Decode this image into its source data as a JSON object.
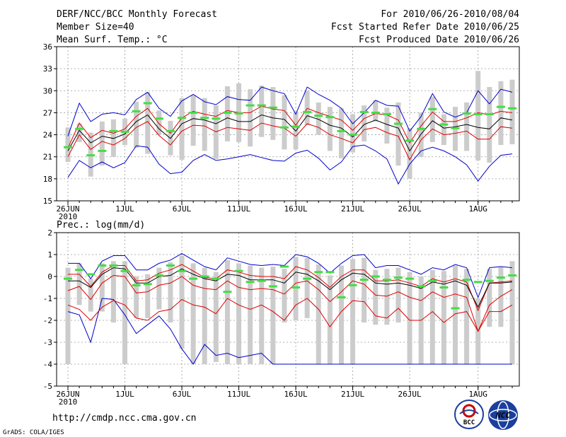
{
  "header": {
    "title": "DERF/NCC/BCC Monthly Forecast",
    "member": "Member Size=40",
    "variable": "Mean Surf. Temp.: °C",
    "period": "For 2010/06/26-2010/08/04",
    "started": "Fcst Started Refer Date 2010/06/25",
    "produced": "Fcst Produced Date 2010/06/26"
  },
  "footer": {
    "url": "http://cmdp.ncc.cma.gov.cn",
    "credit": "GrADS: COLA/IGES",
    "logo_left_text": "BCC",
    "logo_right_text": "NCC"
  },
  "colors": {
    "envelope": "#0000cc",
    "spread": "#dd0000",
    "mean": "#000000",
    "observed": "#44dd44",
    "box": "#cccccc",
    "grid": "#999999"
  },
  "chart_data": [
    {
      "type": "line",
      "title": "Mean Surf. Temp.: °C",
      "ylim": [
        15,
        36
      ],
      "yticks": [
        15,
        18,
        21,
        24,
        27,
        30,
        33,
        36
      ],
      "xticks": [
        {
          "day": 0,
          "label": "26JUN",
          "sub": "2010"
        },
        {
          "day": 5,
          "label": "1JUL",
          "sub": ""
        },
        {
          "day": 10,
          "label": "6JUL",
          "sub": ""
        },
        {
          "day": 15,
          "label": "11JUL",
          "sub": ""
        },
        {
          "day": 20,
          "label": "16JUL",
          "sub": ""
        },
        {
          "day": 25,
          "label": "21JUL",
          "sub": ""
        },
        {
          "day": 30,
          "label": "26JUL",
          "sub": ""
        },
        {
          "day": 36,
          "label": "1AUG",
          "sub": ""
        }
      ],
      "days": 40,
      "series": [
        {
          "name": "max",
          "values": [
            23.8,
            28.3,
            25.8,
            26.8,
            27.0,
            26.7,
            28.8,
            29.8,
            27.6,
            26.5,
            28.6,
            29.5,
            28.5,
            28.1,
            29.2,
            28.8,
            28.7,
            30.5,
            30.0,
            29.6,
            26.8,
            30.5,
            29.5,
            28.7,
            27.6,
            25.5,
            27.0,
            28.7,
            28.0,
            27.9,
            24.5,
            26.5,
            29.6,
            27.1,
            26.4,
            27.0,
            30.0,
            28.2,
            30.2,
            29.8
          ]
        },
        {
          "name": "upper",
          "values": [
            22.2,
            25.6,
            23.6,
            24.6,
            24.2,
            24.8,
            26.5,
            27.6,
            25.5,
            24.2,
            26.3,
            27.2,
            26.8,
            26.5,
            27.3,
            27.0,
            27.0,
            27.9,
            27.5,
            27.3,
            25.3,
            27.6,
            27.0,
            26.5,
            26.0,
            24.6,
            26.2,
            26.9,
            26.7,
            26.0,
            22.9,
            25.2,
            27.1,
            25.8,
            25.8,
            26.3,
            27.0,
            26.7,
            27.2,
            27.0
          ]
        },
        {
          "name": "mean",
          "values": [
            21.8,
            24.6,
            22.9,
            23.8,
            23.5,
            24.1,
            25.8,
            26.7,
            24.8,
            23.5,
            25.5,
            26.2,
            26.0,
            25.5,
            26.3,
            25.8,
            25.8,
            26.7,
            26.3,
            26.1,
            24.5,
            26.6,
            26.1,
            25.3,
            24.9,
            23.7,
            25.4,
            26.0,
            25.4,
            24.9,
            21.8,
            24.1,
            25.9,
            24.9,
            25.1,
            25.4,
            25.0,
            24.8,
            26.3,
            26.0
          ]
        },
        {
          "name": "lower",
          "values": [
            21.0,
            24.0,
            22.0,
            23.1,
            22.6,
            23.5,
            25.0,
            25.8,
            23.9,
            22.6,
            24.5,
            25.3,
            25.2,
            24.4,
            25.0,
            24.8,
            24.6,
            25.6,
            25.2,
            24.9,
            23.8,
            25.5,
            25.0,
            24.0,
            23.5,
            22.9,
            24.7,
            25.0,
            24.3,
            23.8,
            20.6,
            23.3,
            24.8,
            24.0,
            24.2,
            24.5,
            23.4,
            23.4,
            25.1,
            24.9
          ]
        },
        {
          "name": "min",
          "values": [
            18.2,
            20.5,
            19.5,
            20.3,
            19.5,
            20.2,
            22.5,
            22.3,
            20.0,
            18.7,
            18.9,
            20.5,
            21.3,
            20.5,
            20.7,
            21.0,
            21.3,
            20.9,
            20.5,
            20.4,
            21.5,
            21.9,
            20.8,
            19.2,
            20.3,
            22.4,
            22.6,
            21.8,
            20.7,
            17.3,
            20.0,
            21.8,
            22.3,
            21.8,
            21.0,
            19.9,
            17.7,
            19.7,
            21.2,
            21.4
          ]
        },
        {
          "name": "observed",
          "values": [
            22.3,
            24.8,
            21.2,
            21.8,
            24.5,
            24.4,
            27.2,
            28.3,
            26.2,
            24.5,
            26.3,
            27.0,
            26.3,
            26.2,
            27.0,
            26.9,
            28.0,
            28.0,
            27.7,
            25.0,
            25.1,
            27.1,
            26.6,
            26.4,
            24.5,
            24.0,
            27.1,
            27.0,
            26.8,
            25.5,
            23.2,
            24.8,
            27.5,
            25.4,
            24.9,
            26.9,
            26.8,
            26.8,
            27.8,
            27.6
          ]
        },
        {
          "name": "box_top",
          "values": [
            25.0,
            25.5,
            24.3,
            25.8,
            26.1,
            26.2,
            28.5,
            29.8,
            27.3,
            25.9,
            29.0,
            29.4,
            29.0,
            28.0,
            30.6,
            31.0,
            30.2,
            30.7,
            30.5,
            29.4,
            27.1,
            30.0,
            28.4,
            27.8,
            27.6,
            26.8,
            28.0,
            28.7,
            27.7,
            28.4,
            24.9,
            27.0,
            29.2,
            26.8,
            27.8,
            28.4,
            32.7,
            30.5,
            31.3,
            31.5
          ]
        },
        {
          "name": "box_bottom",
          "values": [
            20.3,
            23.0,
            18.3,
            19.8,
            21.0,
            22.6,
            22.2,
            21.4,
            24.0,
            21.2,
            20.6,
            22.5,
            21.8,
            20.7,
            23.1,
            23.0,
            22.4,
            23.7,
            23.3,
            22.0,
            22.0,
            25.3,
            24.0,
            21.8,
            20.8,
            21.6,
            23.1,
            25.8,
            22.8,
            19.8,
            18.0,
            21.0,
            23.0,
            22.6,
            21.8,
            21.8,
            20.5,
            20.2,
            22.6,
            22.7
          ]
        }
      ]
    },
    {
      "type": "line",
      "title": "Prec.: log(mm/d)",
      "ylim": [
        -5,
        2
      ],
      "yticks": [
        -5,
        -4,
        -3,
        -2,
        -1,
        0,
        1,
        2
      ],
      "xticks": [
        {
          "day": 0,
          "label": "26JUN",
          "sub": "2010"
        },
        {
          "day": 5,
          "label": "1JUL",
          "sub": ""
        },
        {
          "day": 10,
          "label": "6JUL",
          "sub": ""
        },
        {
          "day": 15,
          "label": "11JUL",
          "sub": ""
        },
        {
          "day": 20,
          "label": "16JUL",
          "sub": ""
        },
        {
          "day": 25,
          "label": "21JUL",
          "sub": ""
        },
        {
          "day": 30,
          "label": "26JUL",
          "sub": ""
        },
        {
          "day": 36,
          "label": "1AUG",
          "sub": ""
        }
      ],
      "days": 40,
      "series": [
        {
          "name": "max",
          "values": [
            0.6,
            0.6,
            -0.1,
            0.7,
            0.95,
            0.95,
            0.3,
            0.3,
            0.6,
            0.75,
            1.05,
            0.75,
            0.45,
            0.3,
            0.85,
            0.7,
            0.55,
            0.5,
            0.55,
            0.5,
            1.0,
            0.9,
            0.6,
            0.15,
            0.6,
            0.95,
            1.0,
            0.4,
            0.5,
            0.5,
            0.3,
            0.1,
            0.4,
            0.3,
            0.55,
            0.4,
            -0.95,
            0.4,
            0.45,
            0.4
          ]
        },
        {
          "name": "upper",
          "values": [
            0.1,
            0.1,
            -0.45,
            0.2,
            0.5,
            0.5,
            -0.2,
            -0.15,
            0.15,
            0.3,
            0.55,
            0.25,
            -0.05,
            -0.1,
            0.3,
            0.2,
            0.05,
            0.0,
            0.0,
            -0.1,
            0.45,
            0.3,
            -0.05,
            -0.5,
            0.0,
            0.3,
            0.3,
            -0.2,
            -0.2,
            -0.15,
            -0.3,
            -0.45,
            -0.1,
            -0.25,
            -0.1,
            -0.25,
            -1.55,
            -0.3,
            -0.25,
            -0.2
          ]
        },
        {
          "name": "mean",
          "values": [
            -0.2,
            -0.2,
            -0.5,
            0.1,
            0.4,
            0.35,
            -0.3,
            -0.3,
            0.0,
            0.05,
            0.35,
            0.1,
            -0.1,
            -0.2,
            0.1,
            0.05,
            -0.15,
            -0.15,
            -0.15,
            -0.3,
            0.2,
            0.1,
            -0.2,
            -0.6,
            -0.15,
            0.15,
            0.1,
            -0.3,
            -0.35,
            -0.3,
            -0.4,
            -0.55,
            -0.25,
            -0.35,
            -0.2,
            -0.4,
            -1.4,
            -0.3,
            -0.3,
            -0.25
          ]
        },
        {
          "name": "lower",
          "values": [
            -0.65,
            -0.45,
            -1.05,
            -0.3,
            0.05,
            0.0,
            -0.75,
            -0.7,
            -0.4,
            -0.3,
            0.0,
            -0.4,
            -0.55,
            -0.6,
            -0.2,
            -0.5,
            -0.6,
            -0.55,
            -0.6,
            -0.8,
            -0.3,
            -0.2,
            -0.6,
            -1.15,
            -0.7,
            -0.2,
            -0.35,
            -0.85,
            -0.9,
            -0.7,
            -0.95,
            -1.1,
            -0.7,
            -0.95,
            -0.8,
            -0.95,
            -2.5,
            -1.3,
            -0.9,
            -0.6
          ]
        },
        {
          "name": "min",
          "values": [
            -1.6,
            -1.75,
            -3.0,
            -1.0,
            -1.05,
            -1.75,
            -2.6,
            -2.2,
            -1.8,
            -2.4,
            -3.3,
            -4.0,
            -3.1,
            -3.6,
            -3.5,
            -3.7,
            -3.6,
            -3.5,
            -4.0,
            -4.0,
            -4.0,
            -4.0,
            -4.0,
            -4.0,
            -4.0,
            -4.0,
            -4.0,
            -4.0,
            -4.0,
            -4.0,
            -4.0,
            -4.0,
            -4.0,
            -4.0,
            -4.0,
            -4.0,
            -4.0,
            -4.0,
            -4.0,
            -4.0
          ]
        },
        {
          "name": "lower2",
          "values": [
            -1.3,
            -1.5,
            -2.0,
            -1.4,
            -1.1,
            -1.3,
            -1.9,
            -2.0,
            -1.6,
            -1.5,
            -1.05,
            -1.3,
            -1.4,
            -1.7,
            -1.0,
            -1.3,
            -1.5,
            -1.3,
            -1.6,
            -2.0,
            -1.3,
            -1.0,
            -1.5,
            -2.3,
            -1.6,
            -1.1,
            -1.15,
            -1.8,
            -1.9,
            -1.45,
            -2.0,
            -2.0,
            -1.6,
            -2.1,
            -1.7,
            -1.6,
            -2.5,
            -1.6,
            -1.6,
            -1.3
          ]
        },
        {
          "name": "observed",
          "values": [
            -0.1,
            0.3,
            0.1,
            0.5,
            0.5,
            0.25,
            -0.4,
            -0.35,
            0.05,
            0.5,
            0.25,
            -0.1,
            0.0,
            -0.1,
            -0.7,
            0.25,
            -0.25,
            -0.2,
            -0.45,
            0.45,
            -0.5,
            -0.1,
            0.2,
            0.2,
            -0.95,
            -0.4,
            -0.15,
            0.0,
            -0.15,
            -0.05,
            -0.1,
            -0.45,
            -0.2,
            -0.5,
            -1.45,
            -0.15,
            -0.25,
            -0.2,
            -0.05,
            0.05
          ]
        },
        {
          "name": "box_top",
          "values": [
            0.4,
            0.6,
            -0.1,
            0.6,
            0.7,
            0.7,
            0.0,
            0.1,
            0.4,
            0.65,
            0.95,
            0.6,
            0.4,
            0.2,
            0.75,
            0.6,
            0.5,
            0.4,
            0.45,
            0.35,
            0.9,
            0.85,
            0.55,
            0.05,
            0.5,
            0.8,
            0.85,
            0.3,
            0.35,
            0.4,
            0.2,
            0.0,
            0.3,
            0.25,
            0.5,
            0.35,
            -1.0,
            0.35,
            0.45,
            0.7
          ]
        },
        {
          "name": "box_bottom",
          "values": [
            -4.0,
            -1.3,
            -1.6,
            -1.6,
            -2.1,
            -4.0,
            -1.9,
            -1.9,
            -1.5,
            -2.1,
            -3.3,
            -4.0,
            -4.0,
            -3.9,
            -4.0,
            -4.0,
            -4.0,
            -4.0,
            -4.0,
            -2.1,
            -2.0,
            -1.9,
            -4.0,
            -4.0,
            -4.0,
            -4.0,
            -2.1,
            -2.2,
            -2.2,
            -2.1,
            -4.0,
            -4.0,
            -4.0,
            -4.0,
            -4.0,
            -4.0,
            -4.0,
            -2.3,
            -2.3,
            -4.0
          ]
        }
      ]
    }
  ]
}
